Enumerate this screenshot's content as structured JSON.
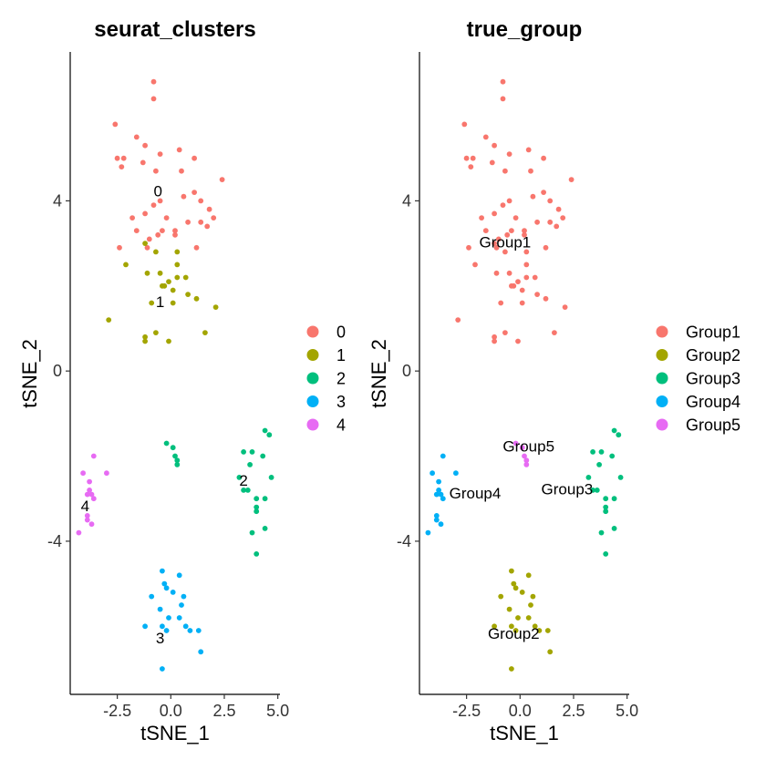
{
  "chart_data": [
    {
      "type": "scatter",
      "title": "seurat_clusters",
      "xlabel": "tSNE_1",
      "ylabel": "tSNE_2",
      "xlim": [
        -4.7,
        5.1
      ],
      "ylim": [
        -7.6,
        7.5
      ],
      "xticks": [
        {
          "v": -2.5,
          "label": "-2.5"
        },
        {
          "v": 0,
          "label": "0.0"
        },
        {
          "v": 2.5,
          "label": "2.5"
        },
        {
          "v": 5,
          "label": "5.0"
        }
      ],
      "yticks": [
        {
          "v": 4,
          "label": "4"
        },
        {
          "v": 0,
          "label": "0"
        },
        {
          "v": -4,
          "label": "-4"
        }
      ],
      "legend_position": "right",
      "series": [
        {
          "name": "0",
          "color": "#F8766D",
          "points": [
            [
              -0.8,
              6.8
            ],
            [
              -0.8,
              6.4
            ],
            [
              -2.6,
              5.8
            ],
            [
              -1.6,
              5.5
            ],
            [
              -1.2,
              5.3
            ],
            [
              -2.5,
              5.0
            ],
            [
              -2.2,
              5.0
            ],
            [
              -1.3,
              4.9
            ],
            [
              -2.3,
              4.8
            ],
            [
              -0.5,
              5.1
            ],
            [
              0.4,
              5.2
            ],
            [
              1.1,
              5.0
            ],
            [
              -0.7,
              4.7
            ],
            [
              0.5,
              4.7
            ],
            [
              2.4,
              4.5
            ],
            [
              1.1,
              4.2
            ],
            [
              -0.5,
              4.0
            ],
            [
              0.6,
              4.1
            ],
            [
              1.4,
              4.0
            ],
            [
              -0.8,
              3.9
            ],
            [
              1.8,
              3.8
            ],
            [
              -1.2,
              3.7
            ],
            [
              -0.2,
              3.6
            ],
            [
              -1.8,
              3.6
            ],
            [
              0.8,
              3.5
            ],
            [
              -0.4,
              3.3
            ],
            [
              0.2,
              3.3
            ],
            [
              1.4,
              3.5
            ],
            [
              1.7,
              3.4
            ],
            [
              2.0,
              3.6
            ],
            [
              -1.6,
              3.3
            ],
            [
              -1.0,
              3.1
            ],
            [
              -0.6,
              3.2
            ],
            [
              0.2,
              3.2
            ],
            [
              1.2,
              2.9
            ],
            [
              -2.4,
              2.9
            ],
            [
              -1.1,
              2.9
            ]
          ]
        },
        {
          "name": "1",
          "color": "#A3A500",
          "points": [
            [
              -1.2,
              3.0
            ],
            [
              -0.7,
              2.8
            ],
            [
              0.3,
              2.8
            ],
            [
              -2.1,
              2.5
            ],
            [
              0.3,
              2.5
            ],
            [
              -0.5,
              2.3
            ],
            [
              -1.1,
              2.3
            ],
            [
              -0.1,
              2.1
            ],
            [
              0.3,
              2.2
            ],
            [
              0.7,
              2.2
            ],
            [
              -0.4,
              2.0
            ],
            [
              -0.3,
              2.0
            ],
            [
              0.1,
              1.9
            ],
            [
              0.8,
              1.8
            ],
            [
              1.2,
              1.7
            ],
            [
              -0.9,
              1.6
            ],
            [
              0.1,
              1.6
            ],
            [
              2.1,
              1.5
            ],
            [
              -2.9,
              1.2
            ],
            [
              -0.7,
              0.9
            ],
            [
              1.6,
              0.9
            ],
            [
              -1.2,
              0.7
            ],
            [
              -1.2,
              0.8
            ],
            [
              -0.1,
              0.7
            ]
          ]
        },
        {
          "name": "2",
          "color": "#00BF7D",
          "points": [
            [
              -0.2,
              -1.7
            ],
            [
              0.1,
              -1.8
            ],
            [
              0.3,
              -2.1
            ],
            [
              0.2,
              -2.0
            ],
            [
              0.3,
              -2.2
            ],
            [
              4.4,
              -1.4
            ],
            [
              4.6,
              -1.5
            ],
            [
              3.4,
              -1.9
            ],
            [
              3.8,
              -1.9
            ],
            [
              4.3,
              -2.0
            ],
            [
              3.7,
              -2.2
            ],
            [
              3.2,
              -2.5
            ],
            [
              4.7,
              -2.5
            ],
            [
              3.6,
              -2.8
            ],
            [
              3.4,
              -2.8
            ],
            [
              4.0,
              -3.0
            ],
            [
              4.4,
              -3.0
            ],
            [
              4.0,
              -3.2
            ],
            [
              4.0,
              -3.3
            ],
            [
              4.4,
              -3.7
            ],
            [
              3.8,
              -3.8
            ],
            [
              4.0,
              -4.3
            ]
          ]
        },
        {
          "name": "3",
          "color": "#00B0F6",
          "points": [
            [
              -0.4,
              -4.7
            ],
            [
              0.4,
              -4.8
            ],
            [
              -0.3,
              -5.0
            ],
            [
              -0.2,
              -5.1
            ],
            [
              0.1,
              -5.2
            ],
            [
              -0.9,
              -5.3
            ],
            [
              0.6,
              -5.3
            ],
            [
              -0.5,
              -5.6
            ],
            [
              0.5,
              -5.5
            ],
            [
              -0.1,
              -5.8
            ],
            [
              0.4,
              -5.8
            ],
            [
              -1.2,
              -6.0
            ],
            [
              -0.4,
              -6.0
            ],
            [
              -0.2,
              -6.1
            ],
            [
              0.7,
              -6.0
            ],
            [
              0.9,
              -6.1
            ],
            [
              1.3,
              -6.1
            ],
            [
              1.4,
              -6.6
            ],
            [
              -0.4,
              -7.0
            ]
          ]
        },
        {
          "name": "4",
          "color": "#E76BF3",
          "points": [
            [
              -3.6,
              -2.0
            ],
            [
              -4.1,
              -2.4
            ],
            [
              -3.0,
              -2.4
            ],
            [
              -3.8,
              -2.6
            ],
            [
              -3.8,
              -2.8
            ],
            [
              -3.9,
              -2.9
            ],
            [
              -3.7,
              -2.9
            ],
            [
              -3.6,
              -3.0
            ],
            [
              -3.9,
              -3.4
            ],
            [
              -3.9,
              -3.5
            ],
            [
              -3.7,
              -3.6
            ],
            [
              -4.3,
              -3.8
            ]
          ]
        }
      ],
      "cluster_labels": [
        {
          "text": "0",
          "x": -0.6,
          "y": 4.2
        },
        {
          "text": "1",
          "x": -0.5,
          "y": 1.6
        },
        {
          "text": "2",
          "x": 3.4,
          "y": -2.6
        },
        {
          "text": "3",
          "x": -0.5,
          "y": -6.3
        },
        {
          "text": "4",
          "x": -4.0,
          "y": -3.2
        }
      ]
    },
    {
      "type": "scatter",
      "title": "true_group",
      "xlabel": "tSNE_1",
      "ylabel": "tSNE_2",
      "xlim": [
        -4.7,
        5.1
      ],
      "ylim": [
        -7.6,
        7.5
      ],
      "xticks": [
        {
          "v": -2.5,
          "label": "-2.5"
        },
        {
          "v": 0,
          "label": "0.0"
        },
        {
          "v": 2.5,
          "label": "2.5"
        },
        {
          "v": 5,
          "label": "5.0"
        }
      ],
      "yticks": [
        {
          "v": 4,
          "label": "4"
        },
        {
          "v": 0,
          "label": "0"
        },
        {
          "v": -4,
          "label": "-4"
        }
      ],
      "legend_position": "right",
      "series": [
        {
          "name": "Group1",
          "color": "#F8766D",
          "points": [
            [
              -0.8,
              6.8
            ],
            [
              -0.8,
              6.4
            ],
            [
              -2.6,
              5.8
            ],
            [
              -1.6,
              5.5
            ],
            [
              -1.2,
              5.3
            ],
            [
              -2.5,
              5.0
            ],
            [
              -2.2,
              5.0
            ],
            [
              -1.3,
              4.9
            ],
            [
              -2.3,
              4.8
            ],
            [
              -0.5,
              5.1
            ],
            [
              0.4,
              5.2
            ],
            [
              1.1,
              5.0
            ],
            [
              -0.7,
              4.7
            ],
            [
              0.5,
              4.7
            ],
            [
              2.4,
              4.5
            ],
            [
              1.1,
              4.2
            ],
            [
              -0.5,
              4.0
            ],
            [
              0.6,
              4.1
            ],
            [
              1.4,
              4.0
            ],
            [
              -0.8,
              3.9
            ],
            [
              1.8,
              3.8
            ],
            [
              -1.2,
              3.7
            ],
            [
              -0.2,
              3.6
            ],
            [
              -1.8,
              3.6
            ],
            [
              0.8,
              3.5
            ],
            [
              -0.4,
              3.3
            ],
            [
              0.2,
              3.3
            ],
            [
              1.4,
              3.5
            ],
            [
              1.7,
              3.4
            ],
            [
              2.0,
              3.6
            ],
            [
              -1.6,
              3.3
            ],
            [
              -1.0,
              3.1
            ],
            [
              -0.6,
              3.2
            ],
            [
              0.2,
              3.2
            ],
            [
              1.2,
              2.9
            ],
            [
              -2.4,
              2.9
            ],
            [
              -1.1,
              2.9
            ],
            [
              -1.2,
              3.0
            ],
            [
              -0.7,
              2.8
            ],
            [
              0.3,
              2.8
            ],
            [
              -2.1,
              2.5
            ],
            [
              0.3,
              2.5
            ],
            [
              -0.5,
              2.3
            ],
            [
              -1.1,
              2.3
            ],
            [
              -0.1,
              2.1
            ],
            [
              0.3,
              2.2
            ],
            [
              0.7,
              2.2
            ],
            [
              -0.4,
              2.0
            ],
            [
              -0.3,
              2.0
            ],
            [
              0.1,
              1.9
            ],
            [
              0.8,
              1.8
            ],
            [
              1.2,
              1.7
            ],
            [
              -0.9,
              1.6
            ],
            [
              0.1,
              1.6
            ],
            [
              2.1,
              1.5
            ],
            [
              -2.9,
              1.2
            ],
            [
              -0.7,
              0.9
            ],
            [
              1.6,
              0.9
            ],
            [
              -1.2,
              0.7
            ],
            [
              -1.2,
              0.8
            ],
            [
              -0.1,
              0.7
            ]
          ]
        },
        {
          "name": "Group2",
          "color": "#A3A500",
          "points": [
            [
              -0.4,
              -4.7
            ],
            [
              0.4,
              -4.8
            ],
            [
              -0.3,
              -5.0
            ],
            [
              -0.2,
              -5.1
            ],
            [
              0.1,
              -5.2
            ],
            [
              -0.9,
              -5.3
            ],
            [
              0.6,
              -5.3
            ],
            [
              -0.5,
              -5.6
            ],
            [
              0.5,
              -5.5
            ],
            [
              -0.1,
              -5.8
            ],
            [
              0.4,
              -5.8
            ],
            [
              -1.2,
              -6.0
            ],
            [
              -0.4,
              -6.0
            ],
            [
              -0.2,
              -6.1
            ],
            [
              0.7,
              -6.0
            ],
            [
              0.9,
              -6.1
            ],
            [
              1.3,
              -6.1
            ],
            [
              1.4,
              -6.6
            ],
            [
              -0.4,
              -7.0
            ]
          ]
        },
        {
          "name": "Group3",
          "color": "#00BF7D",
          "points": [
            [
              4.4,
              -1.4
            ],
            [
              4.6,
              -1.5
            ],
            [
              3.4,
              -1.9
            ],
            [
              3.8,
              -1.9
            ],
            [
              4.3,
              -2.0
            ],
            [
              3.7,
              -2.2
            ],
            [
              3.2,
              -2.5
            ],
            [
              4.7,
              -2.5
            ],
            [
              3.6,
              -2.8
            ],
            [
              3.4,
              -2.8
            ],
            [
              4.0,
              -3.0
            ],
            [
              4.4,
              -3.0
            ],
            [
              4.0,
              -3.2
            ],
            [
              4.0,
              -3.3
            ],
            [
              4.4,
              -3.7
            ],
            [
              3.8,
              -3.8
            ],
            [
              4.0,
              -4.3
            ]
          ]
        },
        {
          "name": "Group4",
          "color": "#00B0F6",
          "points": [
            [
              -3.6,
              -2.0
            ],
            [
              -4.1,
              -2.4
            ],
            [
              -3.0,
              -2.4
            ],
            [
              -3.8,
              -2.6
            ],
            [
              -3.8,
              -2.8
            ],
            [
              -3.9,
              -2.9
            ],
            [
              -3.7,
              -2.9
            ],
            [
              -3.6,
              -3.0
            ],
            [
              -3.9,
              -3.4
            ],
            [
              -3.9,
              -3.5
            ],
            [
              -3.7,
              -3.6
            ],
            [
              -4.3,
              -3.8
            ]
          ]
        },
        {
          "name": "Group5",
          "color": "#E76BF3",
          "points": [
            [
              -0.2,
              -1.7
            ],
            [
              0.1,
              -1.8
            ],
            [
              0.3,
              -2.1
            ],
            [
              0.2,
              -2.0
            ],
            [
              0.3,
              -2.2
            ]
          ]
        }
      ],
      "cluster_labels": [
        {
          "text": "Group1",
          "x": -0.7,
          "y": 3.0
        },
        {
          "text": "Group2",
          "x": -0.3,
          "y": -6.2
        },
        {
          "text": "Group3",
          "x": 2.2,
          "y": -2.8
        },
        {
          "text": "Group4",
          "x": -2.1,
          "y": -2.9
        },
        {
          "text": "Group5",
          "x": 0.4,
          "y": -1.8
        }
      ]
    }
  ]
}
